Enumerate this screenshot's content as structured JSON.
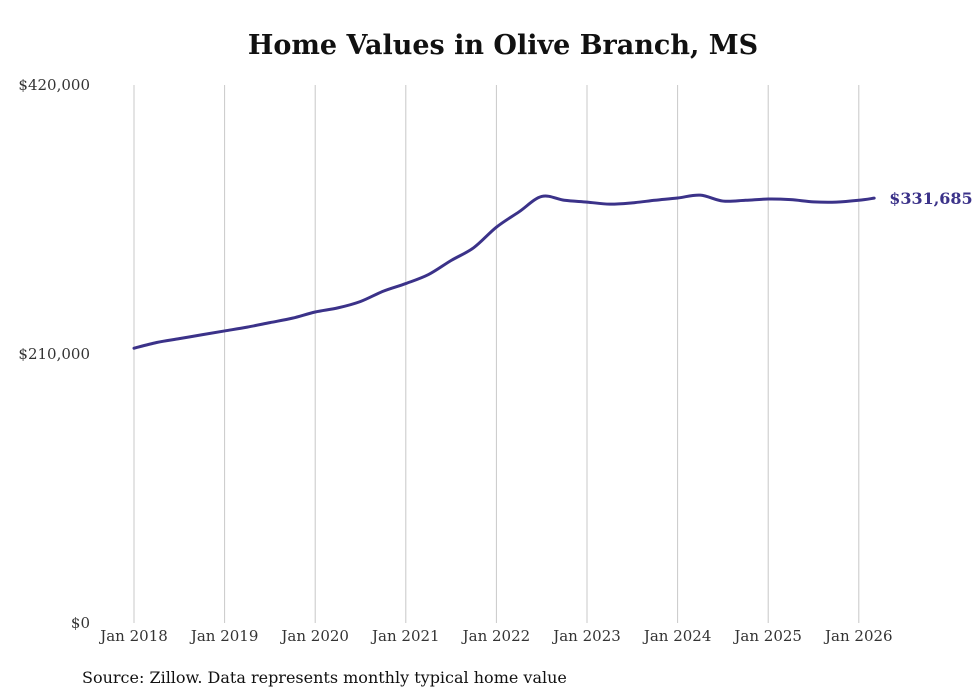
{
  "chart_data": {
    "type": "line",
    "title": "Home Values in Olive Branch, MS",
    "source": "Source: Zillow. Data represents monthly typical home value",
    "xlabel": "",
    "ylabel": "",
    "ylim": [
      0,
      420000
    ],
    "y_ticks": [
      0,
      210000,
      420000
    ],
    "y_tick_labels": [
      "$0",
      "$210,000",
      "$420,000"
    ],
    "x_ticks": [
      2018,
      2019,
      2020,
      2021,
      2022,
      2023,
      2024,
      2025,
      2026
    ],
    "x_tick_labels": [
      "Jan 2018",
      "Jan 2019",
      "Jan 2020",
      "Jan 2021",
      "Jan 2022",
      "Jan 2023",
      "Jan 2024",
      "Jan 2025",
      "Jan 2026"
    ],
    "grid": "vertical",
    "line_color": "#3b3289",
    "end_label": "$331,685",
    "series": [
      {
        "name": "Typical home value",
        "x": [
          2018.0,
          2018.25,
          2018.5,
          2018.75,
          2019.0,
          2019.25,
          2019.5,
          2019.75,
          2020.0,
          2020.25,
          2020.5,
          2020.75,
          2021.0,
          2021.25,
          2021.5,
          2021.75,
          2022.0,
          2022.25,
          2022.5,
          2022.75,
          2023.0,
          2023.25,
          2023.5,
          2023.75,
          2024.0,
          2024.25,
          2024.5,
          2024.75,
          2025.0,
          2025.25,
          2025.5,
          2025.75,
          2026.0,
          2026.17
        ],
        "values": [
          214500,
          219000,
          222000,
          225000,
          228000,
          231000,
          234500,
          238000,
          242800,
          246000,
          251000,
          259000,
          265000,
          272000,
          283000,
          293000,
          309000,
          321000,
          333000,
          330000,
          328600,
          327000,
          328000,
          330000,
          331800,
          334000,
          329400,
          330000,
          331000,
          330500,
          328800,
          328600,
          330000,
          331685
        ]
      }
    ]
  }
}
